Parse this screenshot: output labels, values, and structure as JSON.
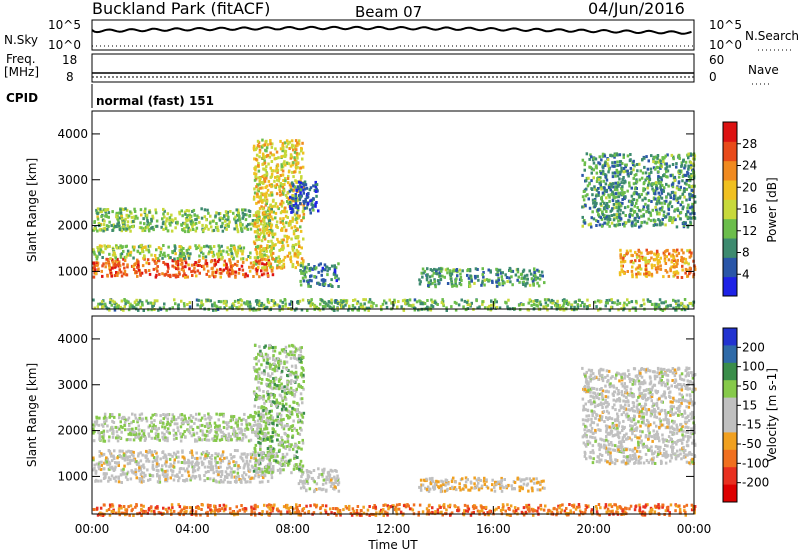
{
  "header": {
    "title": "Buckland Park (fitACF)",
    "beam": "Beam 07",
    "date": "04/Jun/2016"
  },
  "sky_panel": {
    "left_label": "N.Sky",
    "right_label": "N.Search",
    "tick_top": "10^5",
    "tick_bottom": "10^0"
  },
  "freq_panel": {
    "left_label_1": "Freq.",
    "left_label_2": "[MHz]",
    "left_ticks": [
      "18",
      "8"
    ],
    "right_label": "Nave",
    "right_ticks": [
      "60",
      "0"
    ]
  },
  "cpid": {
    "label": "CPID",
    "mode": "normal (fast) 151"
  },
  "colors": {
    "power_scale": [
      "#1e22e6",
      "#2a56a8",
      "#3d8a6f",
      "#6bbd4b",
      "#c7d93b",
      "#f0c020",
      "#f08a20",
      "#e84a1a",
      "#dd1212"
    ],
    "velocity_scale": [
      "#2233d0",
      "#2f6aa8",
      "#3a8d4a",
      "#86c94a",
      "#c0c0c0",
      "#c0c0c0",
      "#f0a020",
      "#f07020",
      "#e83020",
      "#dd0000"
    ]
  },
  "chart_data": [
    {
      "type": "heatmap",
      "name": "power",
      "ylabel": "Slant Range [km]",
      "yticks": [
        "1000",
        "2000",
        "3000",
        "4000"
      ],
      "ylim": [
        180,
        4500
      ],
      "colorbar_label": "Power [dB]",
      "colorbar_ticks": [
        "4",
        "8",
        "12",
        "16",
        "20",
        "24",
        "28"
      ],
      "colorbar_range": [
        0,
        32
      ],
      "regions": [
        {
          "t": [
            0,
            7.2
          ],
          "r": [
            900,
            1300
          ],
          "level": 26
        },
        {
          "t": [
            0,
            7.2
          ],
          "r": [
            1300,
            1600
          ],
          "level": 14
        },
        {
          "t": [
            0,
            7.2
          ],
          "r": [
            1900,
            2400
          ],
          "level": 13
        },
        {
          "t": [
            6.4,
            8.4
          ],
          "r": [
            1100,
            3900
          ],
          "level": 18
        },
        {
          "t": [
            7.8,
            9.0
          ],
          "r": [
            2300,
            3000
          ],
          "level": 6
        },
        {
          "t": [
            8.2,
            9.8
          ],
          "r": [
            700,
            1200
          ],
          "level": 8
        },
        {
          "t": [
            13,
            18
          ],
          "r": [
            700,
            1100
          ],
          "level": 10
        },
        {
          "t": [
            19.5,
            24
          ],
          "r": [
            2000,
            3600
          ],
          "level": 10
        },
        {
          "t": [
            21,
            24
          ],
          "r": [
            900,
            1500
          ],
          "level": 22
        },
        {
          "t": [
            0,
            24
          ],
          "r": [
            180,
            420
          ],
          "level": 12
        }
      ]
    },
    {
      "type": "heatmap",
      "name": "velocity",
      "ylabel": "Slant Range [km]",
      "yticks": [
        "1000",
        "2000",
        "3000",
        "4000"
      ],
      "ylim": [
        180,
        4500
      ],
      "colorbar_label": "Velocity [m s-1]",
      "colorbar_ticks": [
        "200",
        "100",
        "50",
        "15",
        "-15",
        "-50",
        "-100",
        "-200"
      ],
      "colorbar_range": [
        -250,
        250
      ],
      "regions": [
        {
          "t": [
            0,
            7.2
          ],
          "r": [
            900,
            1600
          ],
          "level": 0
        },
        {
          "t": [
            0,
            7.2
          ],
          "r": [
            1800,
            2400
          ],
          "level": 40
        },
        {
          "t": [
            6.4,
            8.4
          ],
          "r": [
            1100,
            3900
          ],
          "level": 60
        },
        {
          "t": [
            8.2,
            9.8
          ],
          "r": [
            700,
            1200
          ],
          "level": 0
        },
        {
          "t": [
            13,
            18
          ],
          "r": [
            700,
            1000
          ],
          "level": -40
        },
        {
          "t": [
            19.5,
            24
          ],
          "r": [
            1300,
            3400
          ],
          "level": 0
        },
        {
          "t": [
            0,
            24
          ],
          "r": [
            180,
            420
          ],
          "level": -120
        }
      ]
    }
  ],
  "time_axis": {
    "xlabel": "Time UT",
    "ticks": [
      "00:00",
      "04:00",
      "08:00",
      "12:00",
      "16:00",
      "20:00",
      "00:00"
    ]
  }
}
